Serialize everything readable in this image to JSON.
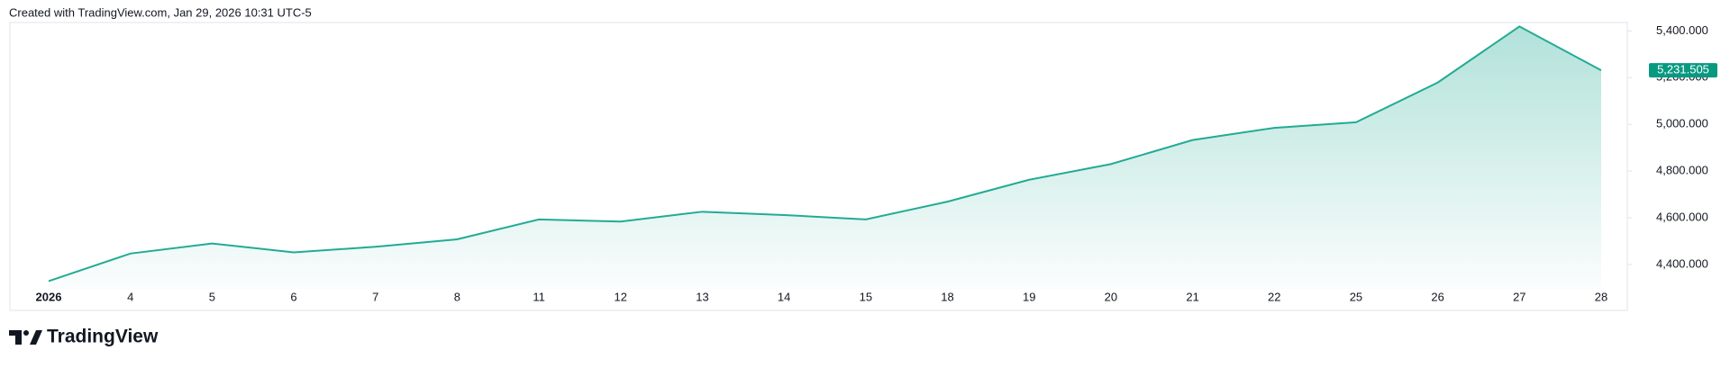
{
  "header": {
    "caption": "Created with TradingView.com, Jan 29, 2026 10:31 UTC-5"
  },
  "footer": {
    "brand": "TradingView"
  },
  "chart_data": {
    "type": "area",
    "categories": [
      "2026",
      "4",
      "5",
      "6",
      "7",
      "8",
      "11",
      "12",
      "13",
      "14",
      "15",
      "18",
      "19",
      "20",
      "21",
      "22",
      "25",
      "26",
      "27",
      "28"
    ],
    "series": [
      {
        "color": "#22ab94",
        "values": [
          4329,
          4447,
          4490,
          4452,
          4476,
          4508,
          4593,
          4584,
          4626,
          4612,
          4593,
          4669,
          4763,
          4830,
          4933,
          4985,
          5009,
          5179,
          5419,
          5231.505
        ],
        "value_labels": [
          null,
          null,
          null,
          null,
          null,
          null,
          null,
          null,
          null,
          null,
          null,
          null,
          null,
          null,
          null,
          null,
          null,
          null,
          null,
          "5,231.505"
        ]
      }
    ],
    "ylim": [
      4296,
      5436
    ],
    "yticks": [
      {
        "value": 4400,
        "label": "4,400.000"
      },
      {
        "value": 4600,
        "label": "4,600.000"
      },
      {
        "value": 4800,
        "label": "4,800.000"
      },
      {
        "value": 5000,
        "label": "5,000.000"
      },
      {
        "value": 5200,
        "label": "5,200.000"
      },
      {
        "value": 5400,
        "label": "5,400.000"
      }
    ],
    "grid": false
  }
}
